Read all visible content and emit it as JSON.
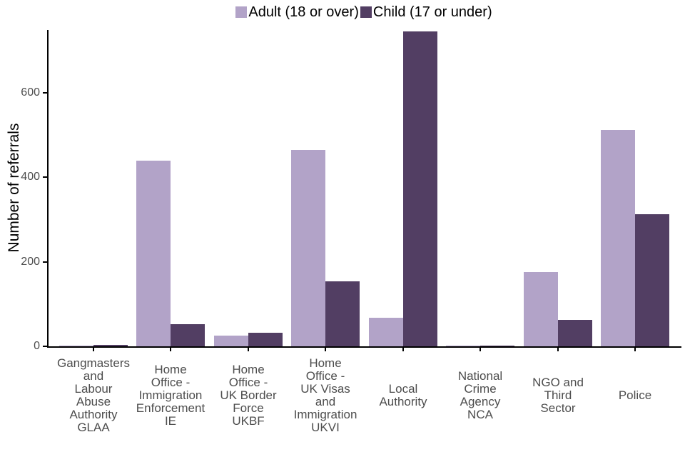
{
  "chart_data": {
    "type": "bar",
    "title": "",
    "ylabel": "Number of referrals",
    "xlabel": "",
    "ylim": [
      0,
      749
    ],
    "yticks": [
      0,
      200,
      400,
      600
    ],
    "grid": false,
    "legend_position": "top-center",
    "categories": [
      "Gangmasters\nand\nLabour\nAbuse\nAuthority\nGLAA",
      "Home\nOffice -\nImmigration\nEnforcement\nIE",
      "Home\nOffice -\nUK Border\nForce\nUKBF",
      "Home\nOffice -\nUK Visas\nand\nImmigration\nUKVI",
      "Local\nAuthority",
      "National\nCrime\nAgency\nNCA",
      "NGO and\nThird\nSector",
      "Police"
    ],
    "series": [
      {
        "name": "Adult (18 or over)",
        "color": "#b2a3c8",
        "values": [
          2,
          440,
          26,
          464,
          67,
          1,
          175,
          512
        ]
      },
      {
        "name": "Child (17 or under)",
        "color": "#523e63",
        "values": [
          3,
          52,
          32,
          153,
          746,
          2,
          63,
          312
        ]
      }
    ]
  },
  "colors": {
    "adult_bar": "#b2a3c8",
    "child_bar": "#523e63",
    "axis_text": "#4d4d4d",
    "axis_line": "#000000",
    "background": "#ffffff"
  }
}
